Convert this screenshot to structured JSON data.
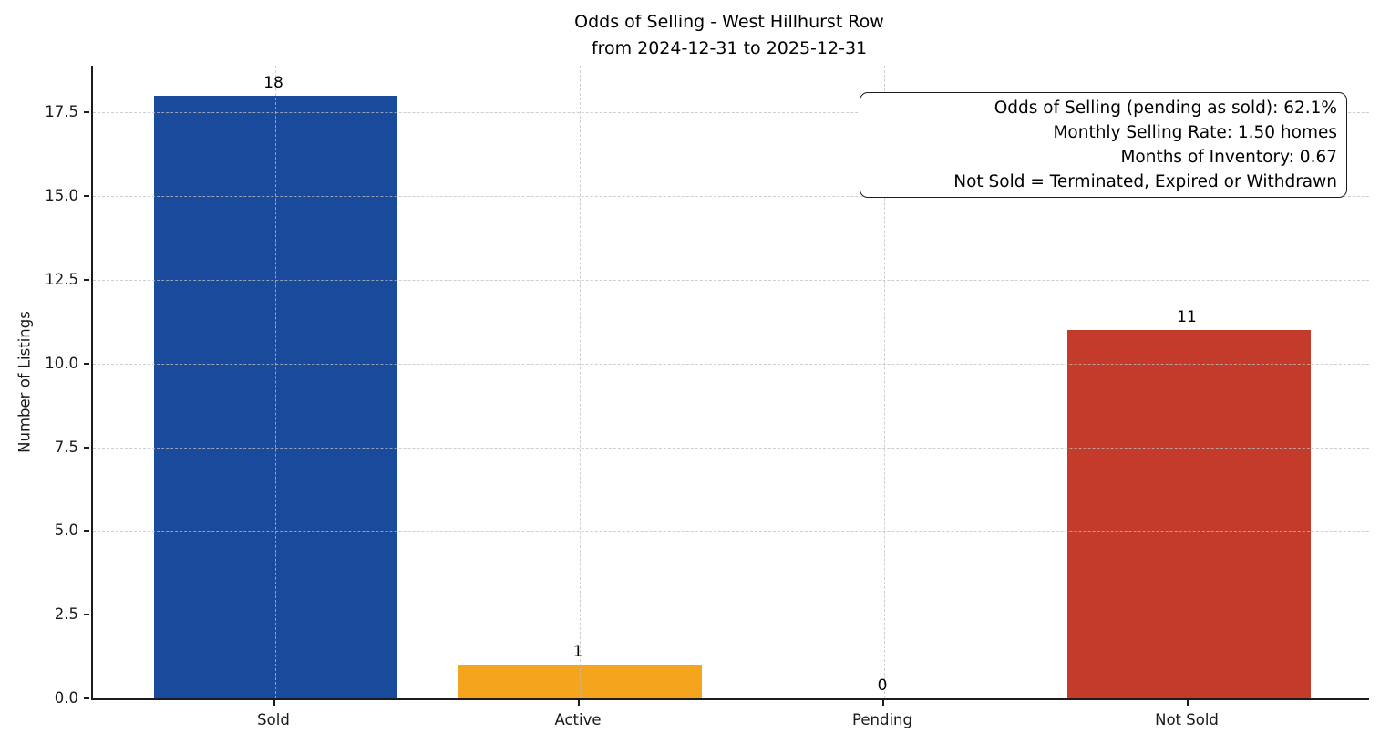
{
  "chart_data": {
    "type": "bar",
    "title": "Odds of Selling - West Hillhurst Row",
    "subtitle": "from 2024-12-31 to 2025-12-31",
    "categories": [
      "Sold",
      "Active",
      "Pending",
      "Not Sold"
    ],
    "values": [
      18,
      1,
      0,
      11
    ],
    "value_labels": [
      "18",
      "1",
      "0",
      "11"
    ],
    "bar_colors": [
      "#1a4a9c",
      "#f4a41d",
      "#7f7f7f",
      "#c43b2b"
    ],
    "xlabel": "",
    "ylabel": "Number of Listings",
    "ylim": [
      0,
      18.9
    ],
    "yticks": [
      "0.0",
      "2.5",
      "5.0",
      "7.5",
      "10.0",
      "12.5",
      "15.0",
      "17.5"
    ],
    "ytick_values": [
      0,
      2.5,
      5,
      7.5,
      10,
      12.5,
      15,
      17.5
    ],
    "grid": true,
    "grid_style": "dashed",
    "legend_position": "none",
    "annotation_box": {
      "lines": [
        "Odds of Selling (pending as sold): 62.1%",
        "Monthly Selling Rate: 1.50 homes",
        "Months of Inventory: 0.67",
        "Not Sold = Terminated, Expired or Withdrawn"
      ]
    }
  },
  "colors": {
    "background": "#ffffff",
    "axis": "#1c1c1c",
    "grid": "#bebebe",
    "text": "#000000",
    "bar_sold": "#1a4a9c",
    "bar_active": "#f4a41d",
    "bar_pending": "#7f7f7f",
    "bar_not_sold": "#c43b2b"
  }
}
